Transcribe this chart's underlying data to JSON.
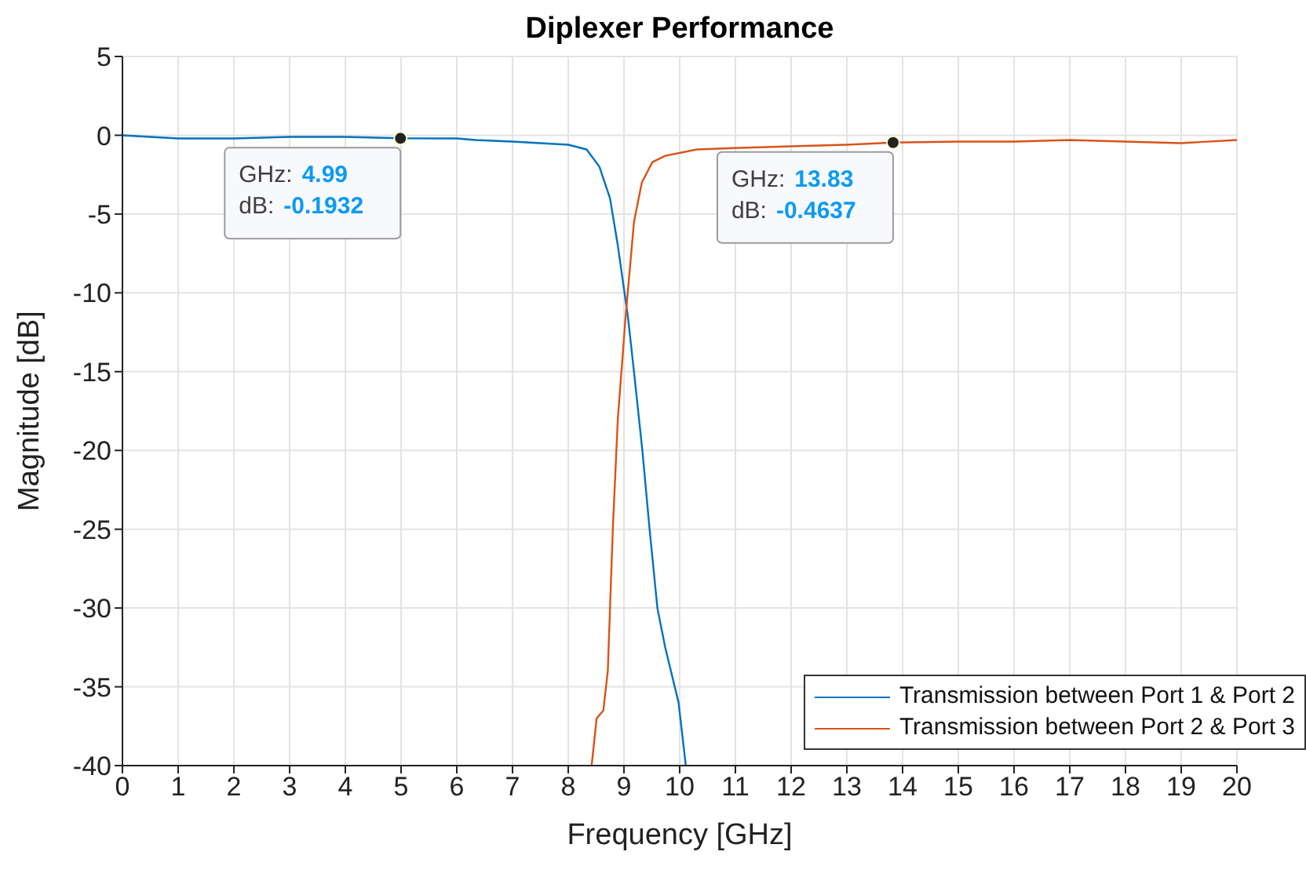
{
  "chart_data": {
    "type": "line",
    "title": "Diplexer Performance",
    "xlabel": "Frequency [GHz]",
    "ylabel": "Magnitude [dB]",
    "xlim": [
      0,
      20
    ],
    "xticks": [
      0,
      1,
      2,
      3,
      4,
      5,
      6,
      7,
      8,
      9,
      10,
      11,
      12,
      13,
      14,
      15,
      16,
      17,
      18,
      19,
      20
    ],
    "ylim": [
      -40,
      5
    ],
    "yticks": [
      -40,
      -35,
      -30,
      -25,
      -20,
      -15,
      -10,
      -5,
      0,
      5
    ],
    "grid": true,
    "legend": "bottom right",
    "marker": "none",
    "line_style": "solid",
    "series": [
      {
        "name": "Transmission between Port 1 & Port 2",
        "color": "#0072bd",
        "x": [
          0,
          0.5,
          1,
          1.5,
          2,
          3,
          4,
          4.99,
          6,
          6.34,
          7,
          7.5,
          8,
          8.33,
          8.56,
          8.75,
          8.89,
          9.07,
          9.18,
          9.33,
          9.46,
          9.6,
          9.74,
          9.98,
          10.11
        ],
        "values": [
          0,
          -0.1,
          -0.2,
          -0.2,
          -0.2,
          -0.1,
          -0.1,
          -0.1932,
          -0.2,
          -0.3,
          -0.4,
          -0.5,
          -0.6,
          -0.9,
          -2,
          -4,
          -7,
          -11.5,
          -15,
          -20,
          -25,
          -30,
          -32.5,
          -36,
          -40
        ]
      },
      {
        "name": "Transmission between Port 2 & Port 3",
        "color": "#d95319",
        "x": [
          8.42,
          8.51,
          8.63,
          8.71,
          8.8,
          8.89,
          9.03,
          9.18,
          9.32,
          9.51,
          9.74,
          10.31,
          11.07,
          12.02,
          13,
          13.83,
          15,
          16,
          17,
          18,
          19,
          20
        ],
        "values": [
          -40,
          -37,
          -36.5,
          -34,
          -25,
          -18,
          -11.5,
          -5.5,
          -3,
          -1.7,
          -1.3,
          -0.9,
          -0.8,
          -0.7,
          -0.6,
          -0.4637,
          -0.4,
          -0.4,
          -0.3,
          -0.4,
          -0.5,
          -0.3
        ]
      }
    ],
    "annotations": [
      {
        "text": "GHz: 4.99\ndB: -0.1932",
        "x": 4.99,
        "y": -0.1932
      },
      {
        "text": "GHz: 13.83\ndB: -0.4637",
        "x": 13.83,
        "y": -0.4637
      }
    ]
  }
}
